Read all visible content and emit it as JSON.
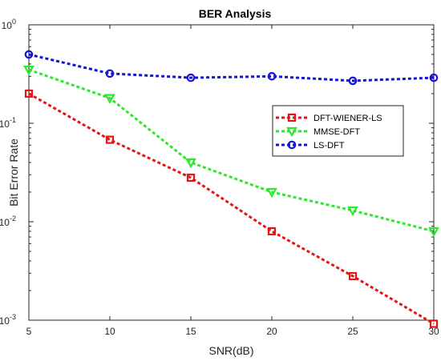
{
  "chart_data": {
    "type": "line",
    "title": "BER Analysis",
    "xlabel": "SNR(dB)",
    "ylabel": "Bit Error Rate",
    "xlim": [
      5,
      30
    ],
    "ylim": [
      0.001,
      1
    ],
    "yscale": "log",
    "grid": false,
    "legend_position": "center-right",
    "x": [
      5,
      10,
      15,
      20,
      25,
      30
    ],
    "x_tick_labels": [
      "5",
      "10",
      "15",
      "20",
      "25",
      "30"
    ],
    "y_ticks": [
      {
        "value": 1,
        "base": "10",
        "exp": "0"
      },
      {
        "value": 0.1,
        "base": "10",
        "exp": "-1"
      },
      {
        "value": 0.01,
        "base": "10",
        "exp": "-2"
      },
      {
        "value": 0.001,
        "base": "10",
        "exp": "-3"
      }
    ],
    "series": [
      {
        "name": "DFT-WIENER-LS",
        "color": "#e81414",
        "marker": "square",
        "values": [
          0.2,
          0.068,
          0.028,
          0.008,
          0.0028,
          0.00092
        ]
      },
      {
        "name": "MMSE-DFT",
        "color": "#2ee82e",
        "marker": "triangle-down",
        "values": [
          0.35,
          0.18,
          0.04,
          0.02,
          0.013,
          0.008
        ]
      },
      {
        "name": "LS-DFT",
        "color": "#1414d8",
        "marker": "circle",
        "values": [
          0.5,
          0.32,
          0.29,
          0.3,
          0.27,
          0.29
        ]
      }
    ]
  }
}
